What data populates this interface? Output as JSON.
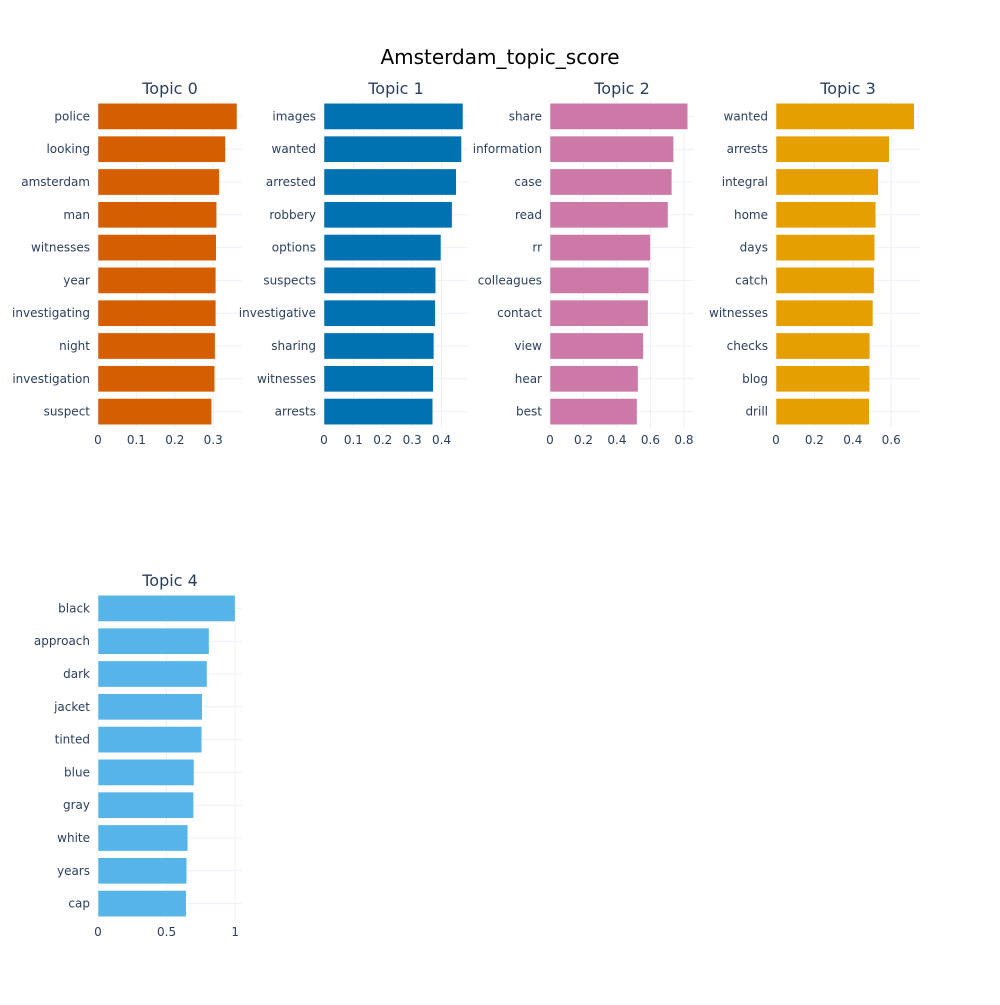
{
  "title": "Amsterdam_topic_score",
  "chart_data": [
    {
      "type": "bar",
      "orientation": "horizontal",
      "title": "Topic 0",
      "color": "#D55E00",
      "categories": [
        "police",
        "looking",
        "amsterdam",
        "man",
        "witnesses",
        "year",
        "investigating",
        "night",
        "investigation",
        "suspect"
      ],
      "values": [
        0.362,
        0.332,
        0.316,
        0.309,
        0.308,
        0.307,
        0.307,
        0.305,
        0.304,
        0.296
      ],
      "xlim": [
        0,
        0.375
      ],
      "xticks": [
        0,
        0.1,
        0.2,
        0.3
      ],
      "xtick_labels": [
        "0",
        "0.1",
        "0.2",
        "0.3"
      ]
    },
    {
      "type": "bar",
      "orientation": "horizontal",
      "title": "Topic 1",
      "color": "#0072B2",
      "categories": [
        "images",
        "wanted",
        "arrested",
        "robbery",
        "options",
        "suspects",
        "investigative",
        "sharing",
        "witnesses",
        "arrests"
      ],
      "values": [
        0.473,
        0.468,
        0.45,
        0.436,
        0.398,
        0.38,
        0.379,
        0.374,
        0.372,
        0.37
      ],
      "xlim": [
        0,
        0.49
      ],
      "xticks": [
        0,
        0.1,
        0.2,
        0.3,
        0.4
      ],
      "xtick_labels": [
        "0",
        "0.1",
        "0.2",
        "0.3",
        "0.4"
      ]
    },
    {
      "type": "bar",
      "orientation": "horizontal",
      "title": "Topic 2",
      "color": "#CC79A7",
      "categories": [
        "share",
        "information",
        "case",
        "read",
        "rr",
        "colleagues",
        "contact",
        "view",
        "hear",
        "best"
      ],
      "values": [
        0.823,
        0.738,
        0.728,
        0.705,
        0.6,
        0.59,
        0.586,
        0.558,
        0.526,
        0.52
      ],
      "xlim": [
        0,
        0.86
      ],
      "xticks": [
        0,
        0.2,
        0.4,
        0.6,
        0.8
      ],
      "xtick_labels": [
        "0",
        "0.2",
        "0.4",
        "0.6",
        "0.8"
      ]
    },
    {
      "type": "bar",
      "orientation": "horizontal",
      "title": "Topic 3",
      "color": "#E69F00",
      "categories": [
        "wanted",
        "arrests",
        "integral",
        "home",
        "days",
        "catch",
        "witnesses",
        "checks",
        "blog",
        "drill"
      ],
      "values": [
        0.72,
        0.59,
        0.533,
        0.52,
        0.514,
        0.511,
        0.505,
        0.489,
        0.488,
        0.486
      ],
      "xlim": [
        0,
        0.75
      ],
      "xticks": [
        0,
        0.2,
        0.4,
        0.6
      ],
      "xtick_labels": [
        "0",
        "0.2",
        "0.4",
        "0.6"
      ]
    },
    {
      "type": "bar",
      "orientation": "horizontal",
      "title": "Topic 4",
      "color": "#56B4E9",
      "categories": [
        "black",
        "approach",
        "dark",
        "jacket",
        "tinted",
        "blue",
        "gray",
        "white",
        "years",
        "cap"
      ],
      "values": [
        1.0,
        0.81,
        0.795,
        0.76,
        0.757,
        0.7,
        0.697,
        0.655,
        0.647,
        0.643
      ],
      "xlim": [
        0,
        1.05
      ],
      "xticks": [
        0,
        0.5,
        1
      ],
      "xtick_labels": [
        "0",
        "0.5",
        "1"
      ]
    }
  ]
}
